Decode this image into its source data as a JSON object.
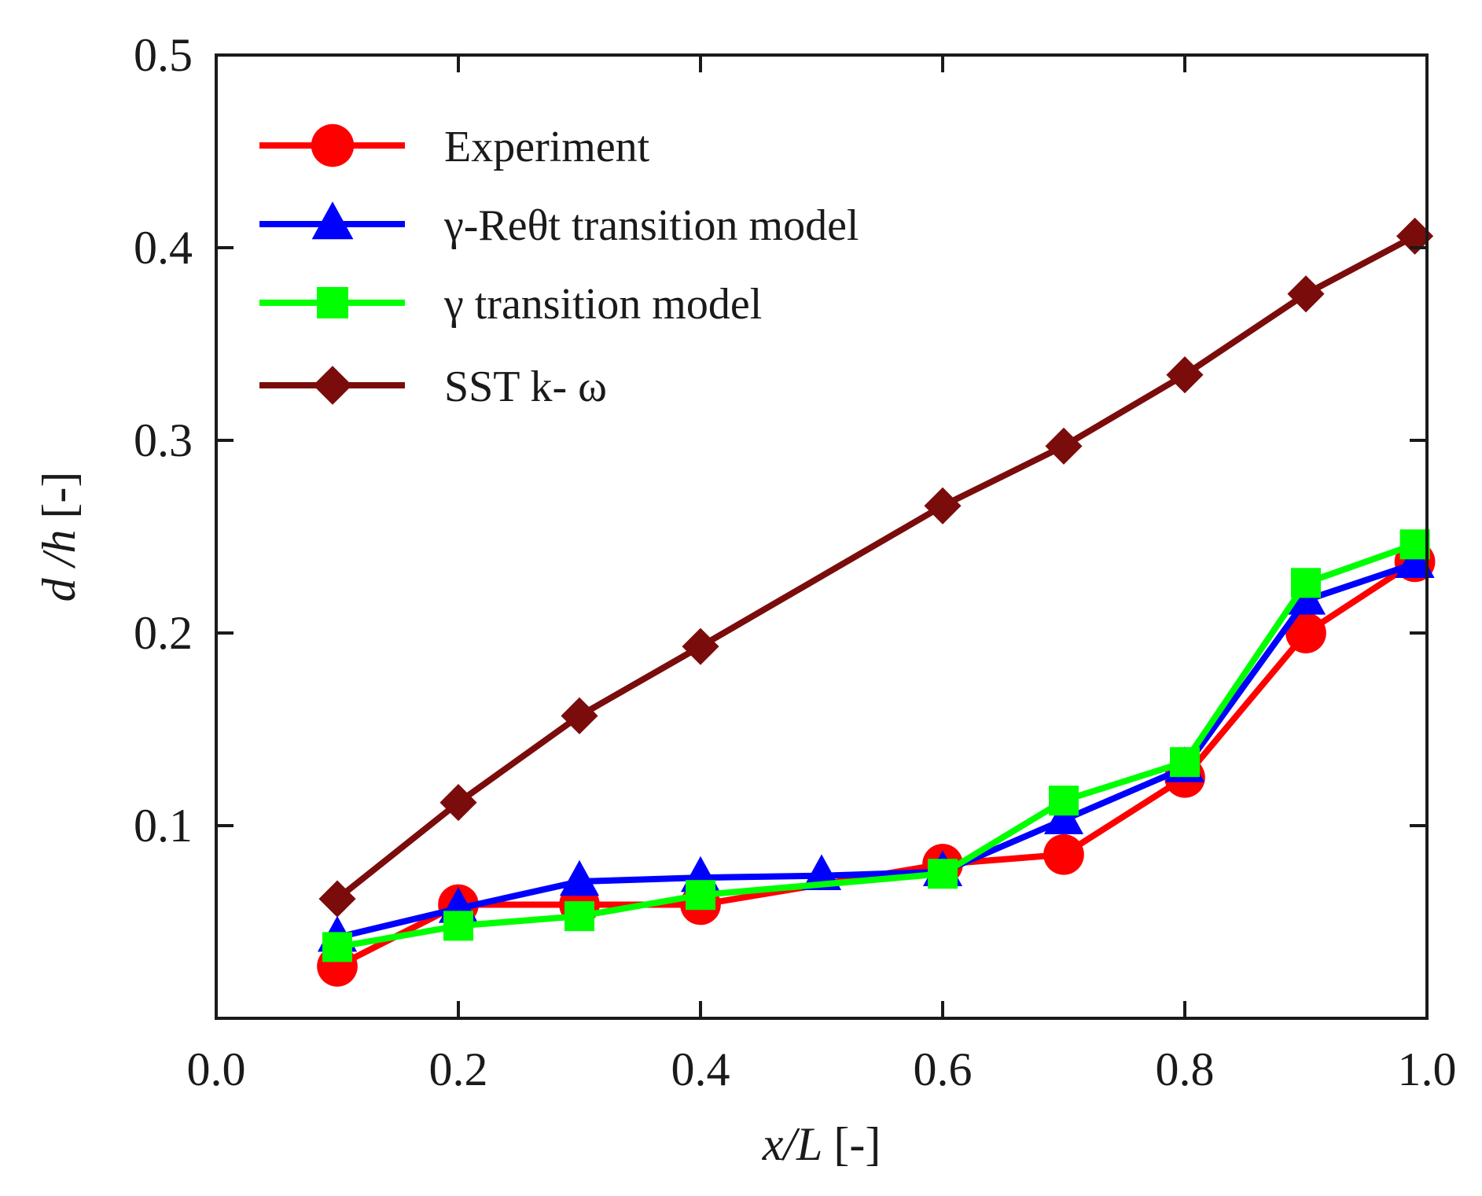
{
  "chart_data": {
    "type": "line",
    "title": "",
    "xlabel": {
      "var": "x/L",
      "unit": "[-]"
    },
    "ylabel": {
      "var": "d /h",
      "unit": "[-]"
    },
    "xlim": [
      0.0,
      1.0
    ],
    "ylim": [
      0.0,
      0.5
    ],
    "x_ticks": [
      "0.0",
      "0.2",
      "0.4",
      "0.6",
      "0.8",
      "1.0"
    ],
    "x_tick_values": [
      0.0,
      0.2,
      0.4,
      0.6,
      0.8,
      1.0
    ],
    "y_ticks": [
      "0.1",
      "0.2",
      "0.3",
      "0.4",
      "0.5"
    ],
    "y_tick_values": [
      0.1,
      0.2,
      0.3,
      0.4,
      0.5
    ],
    "grid": false,
    "legend_position": "top-left",
    "series": [
      {
        "name": "Experiment",
        "color": "#ff0000",
        "marker": "circle",
        "x": [
          0.1,
          0.2,
          0.3,
          0.4,
          0.6,
          0.7,
          0.8,
          0.9,
          0.99
        ],
        "y": [
          0.027,
          0.059,
          0.059,
          0.059,
          0.08,
          0.085,
          0.125,
          0.2,
          0.237
        ]
      },
      {
        "name": "γ-Reθt transition model",
        "color": "#0000ff",
        "marker": "triangle",
        "x": [
          0.1,
          0.2,
          0.3,
          0.4,
          0.5,
          0.6,
          0.7,
          0.8,
          0.9,
          0.99
        ],
        "y": [
          0.042,
          0.057,
          0.071,
          0.073,
          0.074,
          0.076,
          0.103,
          0.13,
          0.217,
          0.236
        ]
      },
      {
        "name": "γ transition model",
        "color": "#00ff00",
        "marker": "square",
        "x": [
          0.1,
          0.2,
          0.3,
          0.4,
          0.6,
          0.7,
          0.8,
          0.9,
          0.99
        ],
        "y": [
          0.037,
          0.048,
          0.053,
          0.064,
          0.075,
          0.113,
          0.133,
          0.226,
          0.246
        ]
      },
      {
        "name": "SST k- ω",
        "color": "#7b0c0c",
        "marker": "diamond",
        "x": [
          0.1,
          0.2,
          0.3,
          0.4,
          0.6,
          0.7,
          0.8,
          0.9,
          0.99
        ],
        "y": [
          0.062,
          0.112,
          0.157,
          0.193,
          0.266,
          0.297,
          0.334,
          0.376,
          0.406
        ]
      }
    ]
  }
}
